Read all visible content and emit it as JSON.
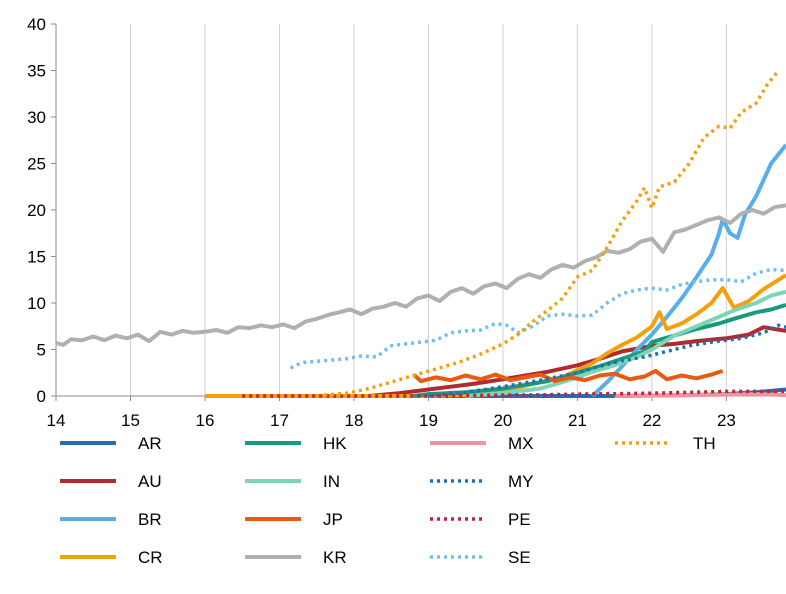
{
  "chart_data": {
    "type": "line",
    "title": "",
    "xlabel": "",
    "ylabel": "",
    "xlim": [
      14,
      23.8
    ],
    "ylim": [
      0,
      40
    ],
    "x_ticks": [
      14,
      15,
      16,
      17,
      18,
      19,
      20,
      21,
      22,
      23
    ],
    "x_tick_labels": [
      "14",
      "15",
      "16",
      "17",
      "18",
      "19",
      "20",
      "21",
      "22",
      "23"
    ],
    "y_ticks": [
      0,
      5,
      10,
      15,
      20,
      25,
      30,
      35,
      40
    ],
    "y_tick_labels": [
      "0",
      "5",
      "10",
      "15",
      "20",
      "25",
      "30",
      "35",
      "40"
    ],
    "grid": "vertical",
    "legend_position": "bottom",
    "series": [
      {
        "name": "AR",
        "color": "#1f6fb4",
        "dash": "solid",
        "points": [
          [
            18.8,
            0
          ],
          [
            19.5,
            0
          ],
          [
            20,
            0
          ],
          [
            20.5,
            0
          ],
          [
            21,
            0
          ],
          [
            21.5,
            0
          ],
          [
            22,
            0.05
          ],
          [
            22.5,
            0.1
          ],
          [
            23,
            0.2
          ],
          [
            23.4,
            0.4
          ],
          [
            23.8,
            0.7
          ]
        ]
      },
      {
        "name": "AU",
        "color": "#b22a2e",
        "dash": "solid",
        "points": [
          [
            18.2,
            0
          ],
          [
            18.6,
            0.3
          ],
          [
            18.8,
            0.5
          ],
          [
            19,
            0.7
          ],
          [
            19.3,
            1.0
          ],
          [
            19.6,
            1.3
          ],
          [
            20,
            1.8
          ],
          [
            20.3,
            2.2
          ],
          [
            20.6,
            2.6
          ],
          [
            21,
            3.3
          ],
          [
            21.3,
            4.0
          ],
          [
            21.6,
            4.8
          ],
          [
            22,
            5.4
          ],
          [
            22.3,
            5.6
          ],
          [
            22.6,
            5.9
          ],
          [
            23,
            6.2
          ],
          [
            23.3,
            6.6
          ],
          [
            23.5,
            7.4
          ],
          [
            23.8,
            7.0
          ]
        ]
      },
      {
        "name": "BR",
        "color": "#5aaee8",
        "dash": "solid",
        "points": [
          [
            21.2,
            0
          ],
          [
            21.4,
            1.5
          ],
          [
            21.6,
            3.2
          ],
          [
            21.8,
            5.0
          ],
          [
            22,
            6.6
          ],
          [
            22.2,
            8.5
          ],
          [
            22.4,
            10.5
          ],
          [
            22.6,
            12.8
          ],
          [
            22.8,
            15.2
          ],
          [
            22.9,
            17.5
          ],
          [
            22.95,
            19.0
          ],
          [
            23.05,
            17.5
          ],
          [
            23.15,
            17.0
          ],
          [
            23.25,
            19.5
          ],
          [
            23.4,
            21.5
          ],
          [
            23.6,
            25.0
          ],
          [
            23.8,
            27.0
          ]
        ]
      },
      {
        "name": "CR",
        "color": "#f4a00c",
        "dash": "solid",
        "points": [
          [
            16,
            0
          ],
          [
            17,
            0
          ],
          [
            18,
            0
          ],
          [
            19,
            0
          ],
          [
            19.5,
            0.1
          ],
          [
            20,
            0.5
          ],
          [
            20.5,
            1.5
          ],
          [
            20.8,
            2.0
          ],
          [
            21,
            2.8
          ],
          [
            21.2,
            3.5
          ],
          [
            21.4,
            4.6
          ],
          [
            21.6,
            5.5
          ],
          [
            21.8,
            6.3
          ],
          [
            22,
            7.5
          ],
          [
            22.1,
            9.0
          ],
          [
            22.2,
            7.2
          ],
          [
            22.4,
            7.8
          ],
          [
            22.6,
            8.8
          ],
          [
            22.8,
            10.0
          ],
          [
            22.95,
            11.6
          ],
          [
            23.1,
            9.5
          ],
          [
            23.3,
            10.2
          ],
          [
            23.5,
            11.5
          ],
          [
            23.7,
            12.5
          ],
          [
            23.8,
            13.0
          ]
        ]
      },
      {
        "name": "HK",
        "color": "#189a7c",
        "dash": "solid",
        "points": [
          [
            18.8,
            0
          ],
          [
            19,
            0.2
          ],
          [
            19.5,
            0.4
          ],
          [
            20,
            0.8
          ],
          [
            20.3,
            1.2
          ],
          [
            20.6,
            1.6
          ],
          [
            21,
            2.5
          ],
          [
            21.3,
            3.2
          ],
          [
            21.6,
            4.0
          ],
          [
            21.9,
            4.8
          ],
          [
            22,
            5.8
          ],
          [
            22.3,
            6.5
          ],
          [
            22.6,
            7.2
          ],
          [
            22.9,
            7.8
          ],
          [
            23.1,
            8.3
          ],
          [
            23.4,
            9.0
          ],
          [
            23.6,
            9.3
          ],
          [
            23.8,
            9.8
          ]
        ]
      },
      {
        "name": "IN",
        "color": "#7ed4b6",
        "dash": "solid",
        "points": [
          [
            19.5,
            0
          ],
          [
            20,
            0.3
          ],
          [
            20.5,
            0.8
          ],
          [
            20.8,
            1.5
          ],
          [
            21,
            2.0
          ],
          [
            21.2,
            2.6
          ],
          [
            21.5,
            3.3
          ],
          [
            21.8,
            4.2
          ],
          [
            22,
            5.0
          ],
          [
            22.3,
            6.5
          ],
          [
            22.6,
            7.5
          ],
          [
            22.9,
            8.5
          ],
          [
            23.1,
            9.2
          ],
          [
            23.4,
            10.0
          ],
          [
            23.6,
            10.8
          ],
          [
            23.8,
            11.2
          ]
        ]
      },
      {
        "name": "JP",
        "color": "#e85a10",
        "dash": "solid",
        "points": [
          [
            18.8,
            2.3
          ],
          [
            18.9,
            1.6
          ],
          [
            19.1,
            2.0
          ],
          [
            19.3,
            1.7
          ],
          [
            19.5,
            2.2
          ],
          [
            19.7,
            1.8
          ],
          [
            19.9,
            2.3
          ],
          [
            20.1,
            1.7
          ],
          [
            20.3,
            2.0
          ],
          [
            20.5,
            2.3
          ],
          [
            20.7,
            1.6
          ],
          [
            20.9,
            2.0
          ],
          [
            21.1,
            1.7
          ],
          [
            21.3,
            2.2
          ],
          [
            21.5,
            2.4
          ],
          [
            21.7,
            1.8
          ],
          [
            21.9,
            2.1
          ],
          [
            22.05,
            2.7
          ],
          [
            22.2,
            1.8
          ],
          [
            22.4,
            2.2
          ],
          [
            22.6,
            1.9
          ],
          [
            22.8,
            2.3
          ],
          [
            22.95,
            2.7
          ]
        ]
      },
      {
        "name": "MX",
        "color": "#f0949c",
        "dash": "solid",
        "points": [
          [
            21.5,
            0
          ],
          [
            22,
            0.05
          ],
          [
            22.5,
            0.1
          ],
          [
            23,
            0.15
          ],
          [
            23.4,
            0.2
          ],
          [
            23.8,
            0.1
          ]
        ]
      },
      {
        "name": "MY",
        "color": "#1f6fb4",
        "dash": "dot",
        "points": [
          [
            19,
            0
          ],
          [
            19.5,
            0.4
          ],
          [
            20,
            1.0
          ],
          [
            20.5,
            1.7
          ],
          [
            21,
            2.5
          ],
          [
            21.3,
            3.2
          ],
          [
            21.6,
            3.8
          ],
          [
            21.9,
            4.2
          ],
          [
            22.2,
            4.8
          ],
          [
            22.5,
            5.4
          ],
          [
            22.8,
            5.8
          ],
          [
            23,
            6.0
          ],
          [
            23.2,
            6.2
          ],
          [
            23.5,
            6.8
          ],
          [
            23.7,
            7.6
          ],
          [
            23.8,
            7.4
          ]
        ]
      },
      {
        "name": "PE",
        "color": "#c4213b",
        "dash": "dot",
        "points": [
          [
            16.5,
            0
          ],
          [
            17,
            0
          ],
          [
            18,
            0
          ],
          [
            19,
            0
          ],
          [
            19.5,
            0.05
          ],
          [
            20,
            0.1
          ],
          [
            20.5,
            0.12
          ],
          [
            21,
            0.2
          ],
          [
            21.5,
            0.25
          ],
          [
            22,
            0.3
          ],
          [
            22.5,
            0.4
          ],
          [
            23,
            0.5
          ],
          [
            23.5,
            0.5
          ],
          [
            23.8,
            0.5
          ]
        ]
      },
      {
        "name": "SE",
        "color": "#70bff0",
        "dash": "dot",
        "points": [
          [
            17.15,
            3.0
          ],
          [
            17.3,
            3.6
          ],
          [
            17.6,
            3.8
          ],
          [
            17.9,
            4.0
          ],
          [
            18.1,
            4.3
          ],
          [
            18.3,
            4.2
          ],
          [
            18.5,
            5.4
          ],
          [
            18.7,
            5.6
          ],
          [
            18.9,
            5.8
          ],
          [
            19.1,
            6.0
          ],
          [
            19.3,
            6.8
          ],
          [
            19.5,
            7.0
          ],
          [
            19.7,
            7.1
          ],
          [
            19.9,
            7.8
          ],
          [
            20.05,
            7.6
          ],
          [
            20.2,
            6.8
          ],
          [
            20.4,
            7.5
          ],
          [
            20.6,
            8.6
          ],
          [
            20.8,
            8.8
          ],
          [
            21.0,
            8.6
          ],
          [
            21.2,
            8.7
          ],
          [
            21.4,
            10.0
          ],
          [
            21.6,
            11.0
          ],
          [
            21.8,
            11.4
          ],
          [
            22.0,
            11.6
          ],
          [
            22.2,
            11.4
          ],
          [
            22.4,
            12.0
          ],
          [
            22.6,
            12.3
          ],
          [
            22.8,
            12.5
          ],
          [
            23.0,
            12.5
          ],
          [
            23.2,
            12.3
          ],
          [
            23.4,
            13.2
          ],
          [
            23.6,
            13.6
          ],
          [
            23.8,
            13.5
          ]
        ]
      },
      {
        "name": "KR",
        "color": "#b0b0b0",
        "dash": "solid",
        "points": [
          [
            14.0,
            5.7
          ],
          [
            14.1,
            5.5
          ],
          [
            14.2,
            6.1
          ],
          [
            14.35,
            6.0
          ],
          [
            14.5,
            6.4
          ],
          [
            14.65,
            6.0
          ],
          [
            14.8,
            6.5
          ],
          [
            14.95,
            6.2
          ],
          [
            15.1,
            6.6
          ],
          [
            15.25,
            5.9
          ],
          [
            15.4,
            6.9
          ],
          [
            15.55,
            6.6
          ],
          [
            15.7,
            7.0
          ],
          [
            15.85,
            6.8
          ],
          [
            16.0,
            6.9
          ],
          [
            16.15,
            7.1
          ],
          [
            16.3,
            6.8
          ],
          [
            16.45,
            7.4
          ],
          [
            16.6,
            7.3
          ],
          [
            16.75,
            7.6
          ],
          [
            16.9,
            7.4
          ],
          [
            17.05,
            7.7
          ],
          [
            17.2,
            7.3
          ],
          [
            17.35,
            8.0
          ],
          [
            17.5,
            8.3
          ],
          [
            17.65,
            8.7
          ],
          [
            17.8,
            9.0
          ],
          [
            17.95,
            9.3
          ],
          [
            18.1,
            8.8
          ],
          [
            18.25,
            9.4
          ],
          [
            18.4,
            9.6
          ],
          [
            18.55,
            10.0
          ],
          [
            18.7,
            9.6
          ],
          [
            18.85,
            10.5
          ],
          [
            19.0,
            10.8
          ],
          [
            19.15,
            10.2
          ],
          [
            19.3,
            11.2
          ],
          [
            19.45,
            11.6
          ],
          [
            19.6,
            11.0
          ],
          [
            19.75,
            11.8
          ],
          [
            19.9,
            12.1
          ],
          [
            20.05,
            11.6
          ],
          [
            20.2,
            12.6
          ],
          [
            20.35,
            13.1
          ],
          [
            20.5,
            12.7
          ],
          [
            20.65,
            13.6
          ],
          [
            20.8,
            14.1
          ],
          [
            20.95,
            13.8
          ],
          [
            21.1,
            14.5
          ],
          [
            21.25,
            14.9
          ],
          [
            21.4,
            15.6
          ],
          [
            21.55,
            15.4
          ],
          [
            21.7,
            15.8
          ],
          [
            21.85,
            16.6
          ],
          [
            22.0,
            16.9
          ],
          [
            22.15,
            15.5
          ],
          [
            22.3,
            17.6
          ],
          [
            22.45,
            17.9
          ],
          [
            22.6,
            18.4
          ],
          [
            22.75,
            18.9
          ],
          [
            22.9,
            19.2
          ],
          [
            23.05,
            18.6
          ],
          [
            23.2,
            19.6
          ],
          [
            23.35,
            20.0
          ],
          [
            23.5,
            19.6
          ],
          [
            23.65,
            20.3
          ],
          [
            23.8,
            20.5
          ]
        ]
      },
      {
        "name": "TH",
        "color": "#f4a00c",
        "dash": "dot",
        "points": [
          [
            17.6,
            0.1
          ],
          [
            17.9,
            0.3
          ],
          [
            18.2,
            0.8
          ],
          [
            18.5,
            1.5
          ],
          [
            18.8,
            2.2
          ],
          [
            19.1,
            2.9
          ],
          [
            19.4,
            3.6
          ],
          [
            19.7,
            4.5
          ],
          [
            20.0,
            5.6
          ],
          [
            20.2,
            6.6
          ],
          [
            20.4,
            8.0
          ],
          [
            20.6,
            9.2
          ],
          [
            20.8,
            10.5
          ],
          [
            21.0,
            12.8
          ],
          [
            21.2,
            13.5
          ],
          [
            21.4,
            16.0
          ],
          [
            21.6,
            18.8
          ],
          [
            21.8,
            21.0
          ],
          [
            21.9,
            22.4
          ],
          [
            22.0,
            20.2
          ],
          [
            22.1,
            22.5
          ],
          [
            22.3,
            23.0
          ],
          [
            22.5,
            25.0
          ],
          [
            22.7,
            27.8
          ],
          [
            22.9,
            29.0
          ],
          [
            23.05,
            28.8
          ],
          [
            23.2,
            30.5
          ],
          [
            23.4,
            31.5
          ],
          [
            23.55,
            33.5
          ],
          [
            23.7,
            35.0
          ]
        ]
      }
    ]
  }
}
